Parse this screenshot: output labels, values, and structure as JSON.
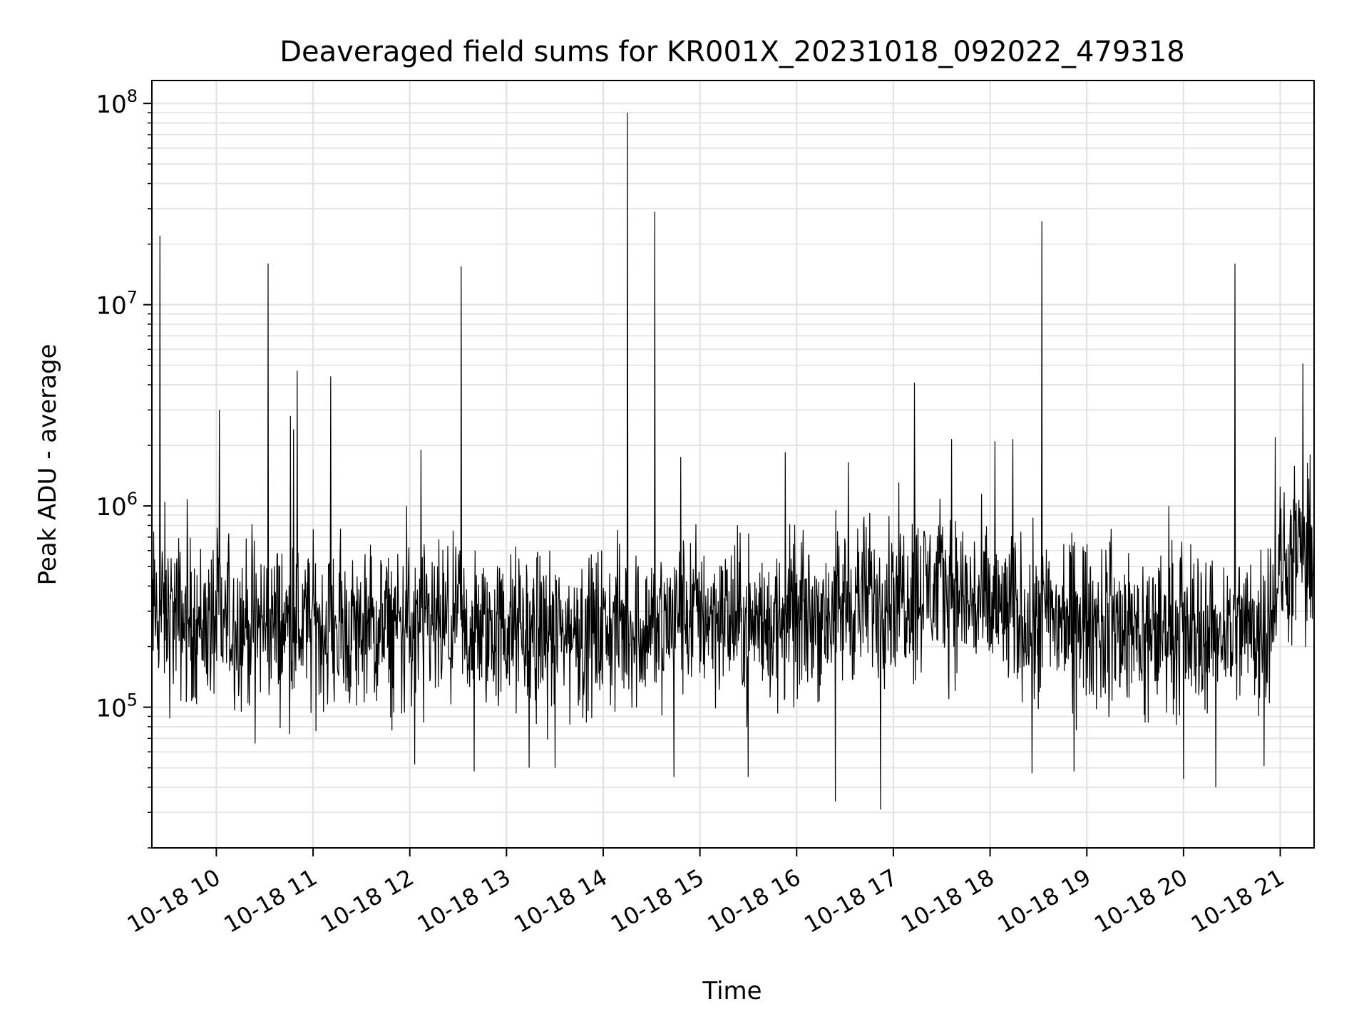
{
  "chart_data": {
    "type": "line",
    "title": "Deaveraged field sums for KR001X_20231018_092022_479318",
    "xlabel": "Time",
    "ylabel": "Peak ADU - average",
    "yscale": "log",
    "ylim": [
      20000,
      130000000
    ],
    "xlim": [
      "2023-10-18 09:20",
      "2023-10-18 21:21"
    ],
    "grid": true,
    "line_color": "#000000",
    "grid_color": "#e3e3e3",
    "x_tick_labels": [
      "10-18 10",
      "10-18 11",
      "10-18 12",
      "10-18 13",
      "10-18 14",
      "10-18 15",
      "10-18 16",
      "10-18 17",
      "10-18 18",
      "10-18 19",
      "10-18 20",
      "10-18 21"
    ],
    "x_tick_values": [
      "2023-10-18 10:00",
      "2023-10-18 11:00",
      "2023-10-18 12:00",
      "2023-10-18 13:00",
      "2023-10-18 14:00",
      "2023-10-18 15:00",
      "2023-10-18 16:00",
      "2023-10-18 17:00",
      "2023-10-18 18:00",
      "2023-10-18 19:00",
      "2023-10-18 20:00",
      "2023-10-18 21:00"
    ],
    "y_ticks": [
      {
        "value": 100000,
        "base": "10",
        "exp": "5"
      },
      {
        "value": 1000000,
        "base": "10",
        "exp": "6"
      },
      {
        "value": 10000000,
        "base": "10",
        "exp": "7"
      },
      {
        "value": 100000000,
        "base": "10",
        "exp": "8"
      }
    ],
    "series": [
      {
        "baseline": [
          [
            "2023-10-18 09:20",
            300000
          ],
          [
            "2023-10-18 09:35",
            280000
          ],
          [
            "2023-10-18 09:50",
            260000
          ],
          [
            "2023-10-18 10:30",
            260000
          ],
          [
            "2023-10-18 11:30",
            240000
          ],
          [
            "2023-10-18 12:30",
            240000
          ],
          [
            "2023-10-18 13:30",
            235000
          ],
          [
            "2023-10-18 14:30",
            250000
          ],
          [
            "2023-10-18 15:00",
            300000
          ],
          [
            "2023-10-18 15:30",
            260000
          ],
          [
            "2023-10-18 16:00",
            270000
          ],
          [
            "2023-10-18 16:30",
            320000
          ],
          [
            "2023-10-18 17:00",
            380000
          ],
          [
            "2023-10-18 17:30",
            400000
          ],
          [
            "2023-10-18 18:00",
            300000
          ],
          [
            "2023-10-18 18:30",
            280000
          ],
          [
            "2023-10-18 19:00",
            260000
          ],
          [
            "2023-10-18 19:30",
            240000
          ],
          [
            "2023-10-18 20:00",
            240000
          ],
          [
            "2023-10-18 20:30",
            250000
          ],
          [
            "2023-10-18 20:50",
            260000
          ],
          [
            "2023-10-18 21:00",
            480000
          ],
          [
            "2023-10-18 21:21",
            600000
          ]
        ],
        "spikes": [
          [
            "2023-10-18 09:25",
            22000000
          ],
          [
            "2023-10-18 09:28",
            1050000
          ],
          [
            "2023-10-18 09:42",
            1080000
          ],
          [
            "2023-10-18 10:02",
            3000000
          ],
          [
            "2023-10-18 10:32",
            16000000
          ],
          [
            "2023-10-18 10:46",
            2800000
          ],
          [
            "2023-10-18 10:48",
            2400000
          ],
          [
            "2023-10-18 10:50",
            4700000
          ],
          [
            "2023-10-18 11:11",
            4400000
          ],
          [
            "2023-10-18 11:58",
            1000000
          ],
          [
            "2023-10-18 12:07",
            1900000
          ],
          [
            "2023-10-18 12:32",
            15500000
          ],
          [
            "2023-10-18 14:15",
            90000000
          ],
          [
            "2023-10-18 14:32",
            29000000
          ],
          [
            "2023-10-18 14:48",
            1750000
          ],
          [
            "2023-10-18 15:53",
            1850000
          ],
          [
            "2023-10-18 16:32",
            1650000
          ],
          [
            "2023-10-18 17:13",
            4100000
          ],
          [
            "2023-10-18 17:36",
            2150000
          ],
          [
            "2023-10-18 18:03",
            2100000
          ],
          [
            "2023-10-18 18:14",
            2150000
          ],
          [
            "2023-10-18 18:32",
            26000000
          ],
          [
            "2023-10-18 19:51",
            1000000
          ],
          [
            "2023-10-18 20:32",
            16000000
          ],
          [
            "2023-10-18 20:57",
            2200000
          ],
          [
            "2023-10-18 21:14",
            5100000
          ]
        ],
        "dips": [
          [
            "2023-10-18 09:31",
            88000
          ],
          [
            "2023-10-18 10:24",
            66000
          ],
          [
            "2023-10-18 12:03",
            52000
          ],
          [
            "2023-10-18 12:40",
            48000
          ],
          [
            "2023-10-18 13:14",
            50000
          ],
          [
            "2023-10-18 13:30",
            50000
          ],
          [
            "2023-10-18 14:44",
            45000
          ],
          [
            "2023-10-18 15:30",
            45000
          ],
          [
            "2023-10-18 16:24",
            34000
          ],
          [
            "2023-10-18 16:52",
            31000
          ],
          [
            "2023-10-18 18:26",
            47000
          ],
          [
            "2023-10-18 18:52",
            48000
          ],
          [
            "2023-10-18 20:00",
            44000
          ],
          [
            "2023-10-18 20:20",
            40000
          ],
          [
            "2023-10-18 20:50",
            51000
          ]
        ]
      }
    ]
  }
}
